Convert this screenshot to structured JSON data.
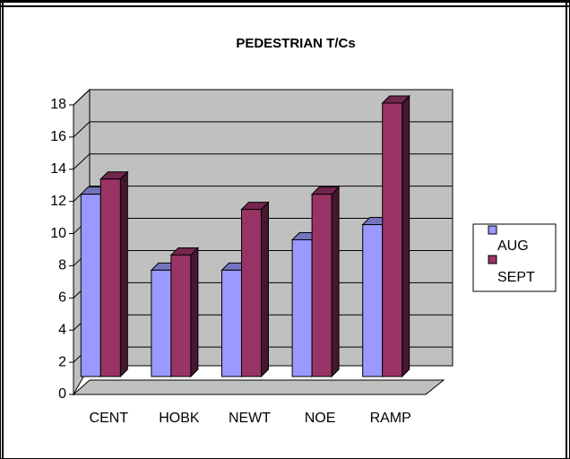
{
  "chart_data": {
    "type": "bar",
    "title": "PEDESTRIAN T/Cs",
    "categories": [
      "CENT",
      "HOBK",
      "NEWT",
      "NOE",
      "RAMP"
    ],
    "series": [
      {
        "name": "AUG",
        "color": "#9999ff",
        "values": [
          12,
          7,
          7,
          9,
          10
        ]
      },
      {
        "name": "SEPT",
        "color": "#993366",
        "values": [
          13,
          8,
          11,
          12,
          18
        ]
      }
    ],
    "ylim": [
      0,
      18
    ],
    "yticks": [
      0,
      2,
      4,
      6,
      8,
      10,
      12,
      14,
      16,
      18
    ],
    "grid": true
  }
}
